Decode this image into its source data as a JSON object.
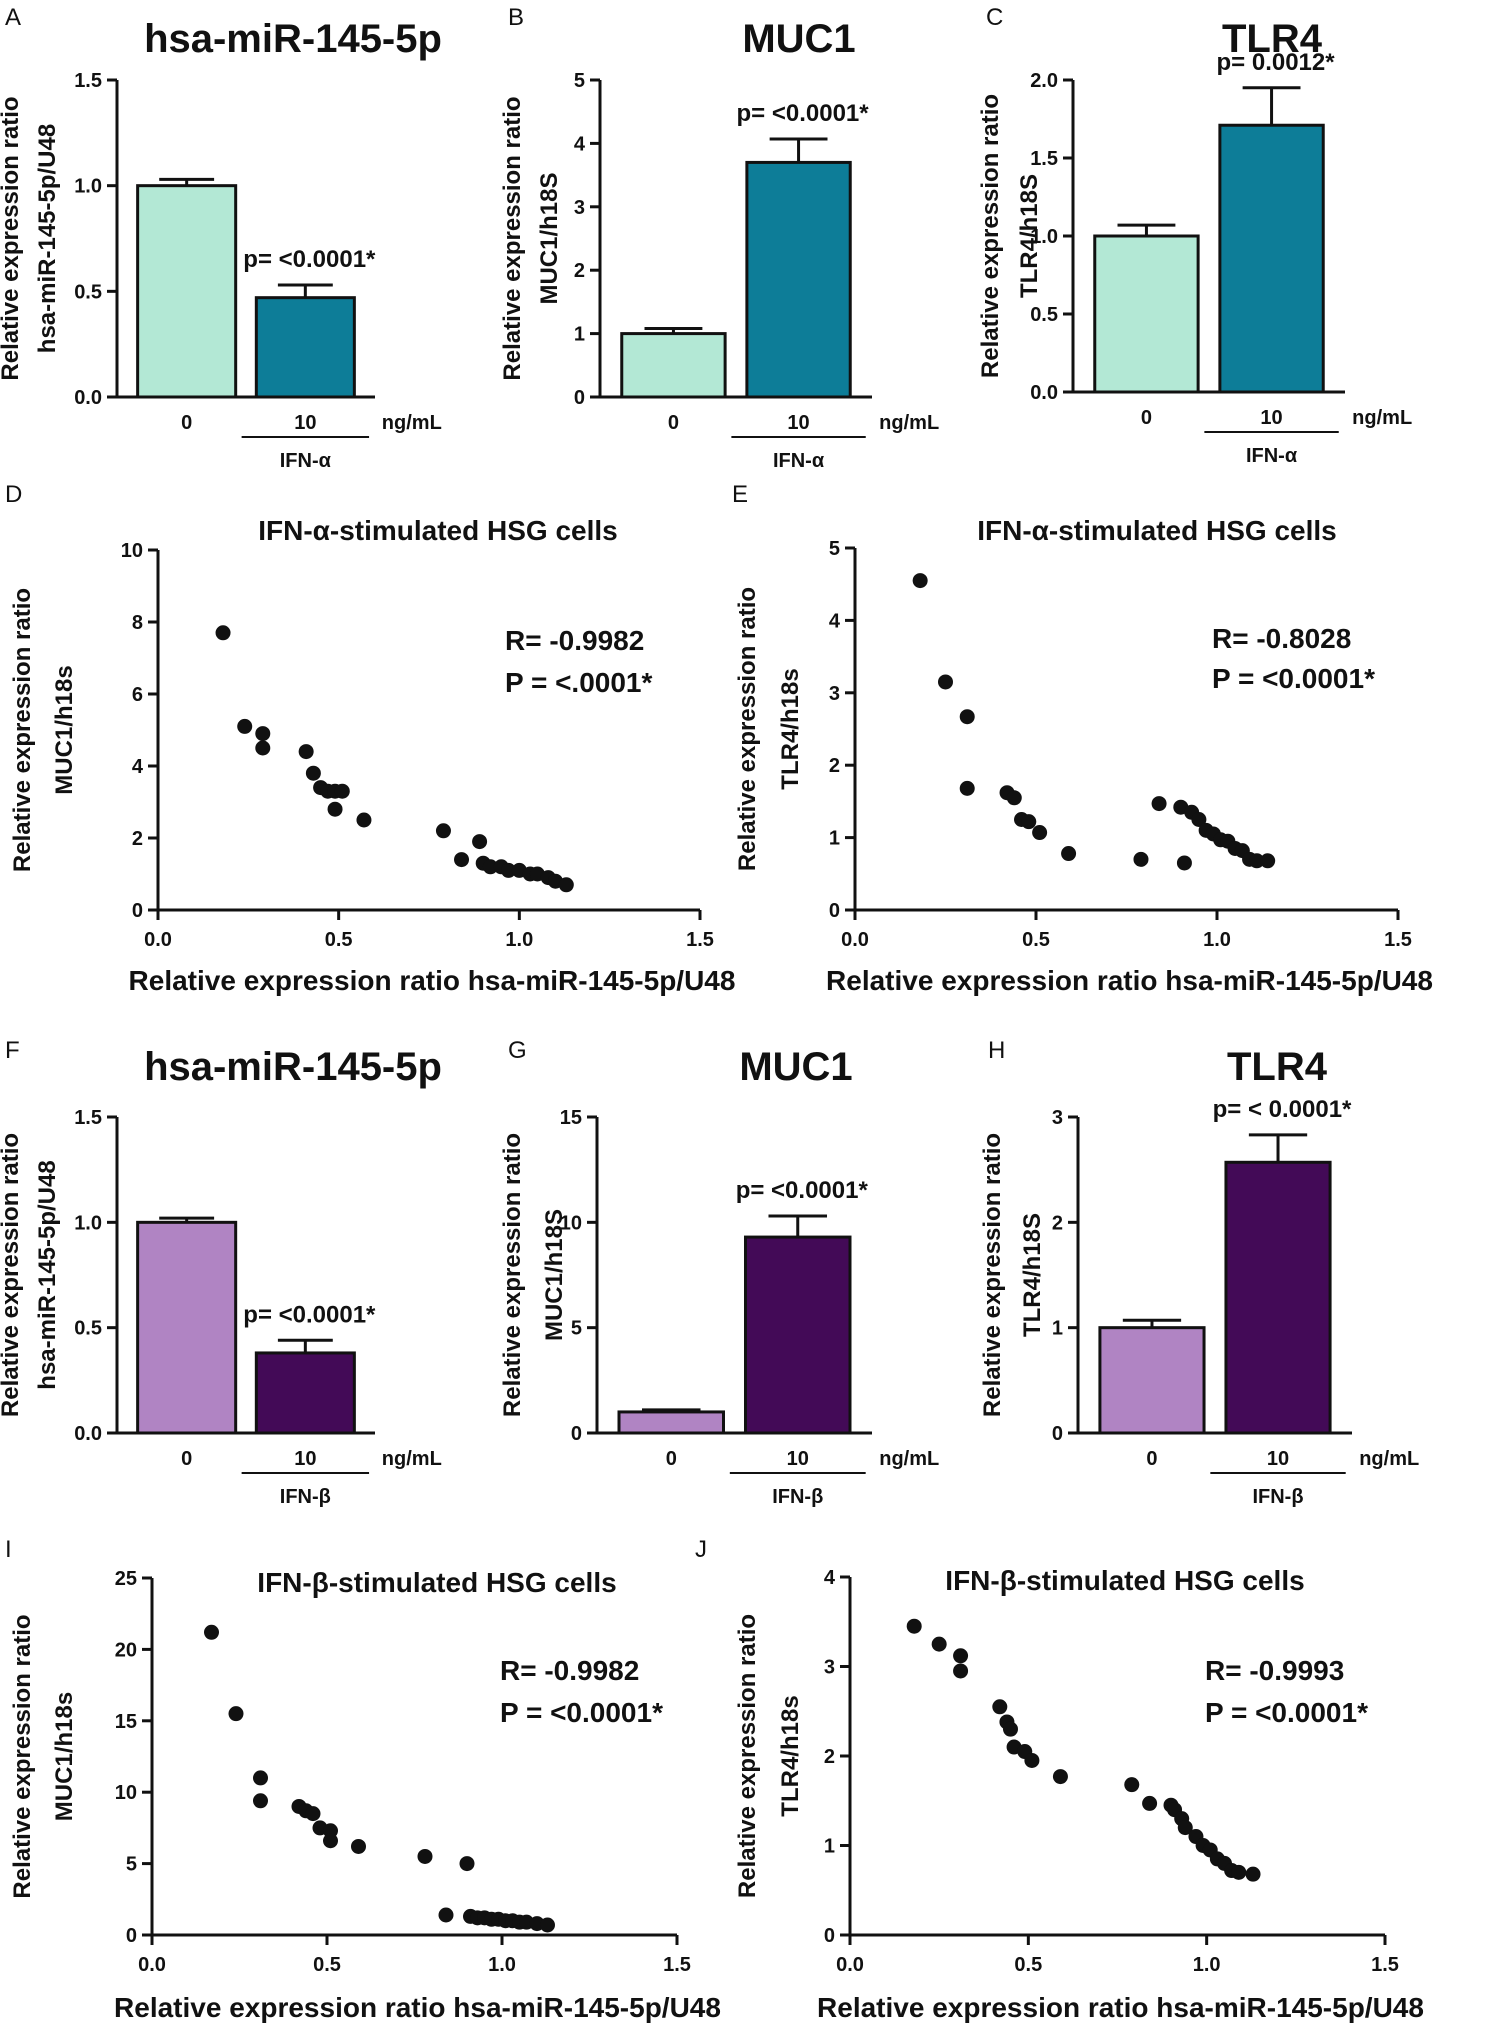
{
  "colors": {
    "alpha_control": "#b3e8d5",
    "alpha_treated": "#0d7d98",
    "beta_control": "#b084c3",
    "beta_treated": "#430a57",
    "ink": "#111111"
  },
  "chart_data": [
    {
      "id": "bar-A",
      "panel": "A",
      "type": "bar",
      "title": "hsa-miR-145-5p",
      "ylabel": [
        "Relative expression ratio",
        "hsa-miR-145-5p/U48"
      ],
      "ylim": [
        0,
        1.5
      ],
      "yticks": [
        "0.0",
        "0.5",
        "1.0",
        "1.5"
      ],
      "categories": [
        "0",
        "10"
      ],
      "unit": "ng/mL",
      "treatment": "IFN-α",
      "values": [
        1.0,
        0.47
      ],
      "errors": [
        0.03,
        0.06
      ],
      "annotation": "p= <0.0001*",
      "colors": [
        "#b3e8d5",
        "#0d7d98"
      ]
    },
    {
      "id": "bar-B",
      "panel": "B",
      "type": "bar",
      "title": "MUC1",
      "ylabel": [
        "Relative expression ratio",
        "MUC1/h18S"
      ],
      "ylim": [
        0,
        5
      ],
      "yticks": [
        "0",
        "1",
        "2",
        "3",
        "4",
        "5"
      ],
      "categories": [
        "0",
        "10"
      ],
      "unit": "ng/mL",
      "treatment": "IFN-α",
      "values": [
        1.0,
        3.7
      ],
      "errors": [
        0.08,
        0.37
      ],
      "annotation": "p= <0.0001*",
      "colors": [
        "#b3e8d5",
        "#0d7d98"
      ]
    },
    {
      "id": "bar-C",
      "panel": "C",
      "type": "bar",
      "title": "TLR4",
      "ylabel": [
        "Relative expression ratio",
        "TLR4/h18S"
      ],
      "ylim": [
        0,
        2.0
      ],
      "yticks": [
        "0.0",
        "0.5",
        "1.0",
        "1.5",
        "2.0"
      ],
      "categories": [
        "0",
        "10"
      ],
      "unit": "ng/mL",
      "treatment": "IFN-α",
      "values": [
        1.0,
        1.71
      ],
      "errors": [
        0.07,
        0.24
      ],
      "annotation": "p= 0.0012*",
      "colors": [
        "#b3e8d5",
        "#0d7d98"
      ]
    },
    {
      "id": "scatter-D",
      "panel": "D",
      "type": "scatter",
      "title": "IFN-α-stimulated HSG cells",
      "xlabel": "Relative expression ratio hsa-miR-145-5p/U48",
      "ylabel": [
        "Relative expression ratio",
        "MUC1/h18s"
      ],
      "xlim": [
        0,
        1.5
      ],
      "ylim": [
        0,
        10
      ],
      "xticks": [
        "0.0",
        "0.5",
        "1.0",
        "1.5"
      ],
      "yticks": [
        "0",
        "2",
        "4",
        "6",
        "8",
        "10"
      ],
      "stats": [
        "R= -0.9982",
        "P = <.0001*"
      ],
      "x": [
        0.18,
        0.24,
        0.29,
        0.29,
        0.41,
        0.43,
        0.45,
        0.47,
        0.49,
        0.51,
        0.49,
        0.57,
        0.79,
        0.84,
        0.89,
        0.9,
        0.92,
        0.95,
        0.97,
        1.0,
        1.03,
        1.05,
        1.08,
        1.1,
        1.13
      ],
      "y": [
        7.7,
        5.1,
        4.9,
        4.5,
        4.4,
        3.8,
        3.4,
        3.3,
        3.3,
        3.3,
        2.8,
        2.5,
        2.2,
        1.4,
        1.9,
        1.3,
        1.2,
        1.2,
        1.1,
        1.1,
        1.0,
        1.0,
        0.9,
        0.8,
        0.7
      ]
    },
    {
      "id": "scatter-E",
      "panel": "E",
      "type": "scatter",
      "title": "IFN-α-stimulated HSG cells",
      "xlabel": "Relative expression ratio hsa-miR-145-5p/U48",
      "ylabel": [
        "Relative expression ratio",
        "TLR4/h18s"
      ],
      "xlim": [
        0,
        1.5
      ],
      "ylim": [
        0,
        5
      ],
      "xticks": [
        "0.0",
        "0.5",
        "1.0",
        "1.5"
      ],
      "yticks": [
        "0",
        "1",
        "2",
        "3",
        "4",
        "5"
      ],
      "stats": [
        "R= -0.8028",
        "P = <0.0001*"
      ],
      "x": [
        0.18,
        0.25,
        0.31,
        0.31,
        0.42,
        0.44,
        0.46,
        0.48,
        0.51,
        0.59,
        0.79,
        0.84,
        0.9,
        0.91,
        0.93,
        0.95,
        0.97,
        0.99,
        1.01,
        1.03,
        1.05,
        1.07,
        1.09,
        1.11,
        1.14
      ],
      "y": [
        4.55,
        3.15,
        2.67,
        1.68,
        1.62,
        1.55,
        1.25,
        1.22,
        1.07,
        0.78,
        0.7,
        1.47,
        1.42,
        0.65,
        1.35,
        1.25,
        1.1,
        1.05,
        0.97,
        0.95,
        0.85,
        0.82,
        0.7,
        0.68,
        0.68
      ]
    },
    {
      "id": "bar-F",
      "panel": "F",
      "type": "bar",
      "title": "hsa-miR-145-5p",
      "ylabel": [
        "Relative expression ratio",
        "hsa-miR-145-5p/U48"
      ],
      "ylim": [
        0,
        1.5
      ],
      "yticks": [
        "0.0",
        "0.5",
        "1.0",
        "1.5"
      ],
      "categories": [
        "0",
        "10"
      ],
      "unit": "ng/mL",
      "treatment": "IFN-β",
      "values": [
        1.0,
        0.38
      ],
      "errors": [
        0.02,
        0.06
      ],
      "annotation": "p= <0.0001*",
      "colors": [
        "#b084c3",
        "#430a57"
      ]
    },
    {
      "id": "bar-G",
      "panel": "G",
      "type": "bar",
      "title": "MUC1",
      "ylabel": [
        "Relative expression ratio",
        "MUC1/h18S"
      ],
      "ylim": [
        0,
        15
      ],
      "yticks": [
        "0",
        "5",
        "10",
        "15"
      ],
      "categories": [
        "0",
        "10"
      ],
      "unit": "ng/mL",
      "treatment": "IFN-β",
      "values": [
        1.0,
        9.3
      ],
      "errors": [
        0.1,
        1.0
      ],
      "annotation": "p= <0.0001*",
      "colors": [
        "#b084c3",
        "#430a57"
      ]
    },
    {
      "id": "bar-H",
      "panel": "H",
      "type": "bar",
      "title": "TLR4",
      "ylabel": [
        "Relative expression ratio",
        "TLR4/h18S"
      ],
      "ylim": [
        0,
        3
      ],
      "yticks": [
        "0",
        "1",
        "2",
        "3"
      ],
      "categories": [
        "0",
        "10"
      ],
      "unit": "ng/mL",
      "treatment": "IFN-β",
      "values": [
        1.0,
        2.57
      ],
      "errors": [
        0.07,
        0.26
      ],
      "annotation": "p= < 0.0001*",
      "colors": [
        "#b084c3",
        "#430a57"
      ]
    },
    {
      "id": "scatter-I",
      "panel": "I",
      "type": "scatter",
      "title": "IFN-β-stimulated HSG cells",
      "xlabel": "Relative expression ratio hsa-miR-145-5p/U48",
      "ylabel": [
        "Relative expression ratio",
        "MUC1/h18s"
      ],
      "xlim": [
        0,
        1.5
      ],
      "ylim": [
        0,
        25
      ],
      "xticks": [
        "0.0",
        "0.5",
        "1.0",
        "1.5"
      ],
      "yticks": [
        "0",
        "5",
        "10",
        "15",
        "20",
        "25"
      ],
      "stats": [
        "R= -0.9982",
        "P = <0.0001*"
      ],
      "x": [
        0.17,
        0.24,
        0.31,
        0.31,
        0.42,
        0.44,
        0.46,
        0.48,
        0.51,
        0.51,
        0.59,
        0.78,
        0.84,
        0.9,
        0.91,
        0.93,
        0.95,
        0.97,
        0.99,
        1.01,
        1.03,
        1.05,
        1.07,
        1.1,
        1.13
      ],
      "y": [
        21.2,
        15.5,
        11.0,
        9.4,
        9.0,
        8.7,
        8.5,
        7.5,
        7.3,
        6.6,
        6.2,
        5.5,
        1.4,
        5.0,
        1.3,
        1.2,
        1.2,
        1.1,
        1.1,
        1.0,
        1.0,
        0.9,
        0.9,
        0.8,
        0.7
      ]
    },
    {
      "id": "scatter-J",
      "panel": "J",
      "type": "scatter",
      "title": "IFN-β-stimulated HSG cells",
      "xlabel": "Relative expression ratio hsa-miR-145-5p/U48",
      "ylabel": [
        "Relative expression ratio",
        "TLR4/h18s"
      ],
      "xlim": [
        0,
        1.5
      ],
      "ylim": [
        0,
        4
      ],
      "xticks": [
        "0.0",
        "0.5",
        "1.0",
        "1.5"
      ],
      "yticks": [
        "0",
        "1",
        "2",
        "3",
        "4"
      ],
      "stats": [
        "R= -0.9993",
        "P = <0.0001*"
      ],
      "x": [
        0.18,
        0.25,
        0.31,
        0.31,
        0.42,
        0.44,
        0.45,
        0.46,
        0.49,
        0.51,
        0.59,
        0.79,
        0.84,
        0.9,
        0.91,
        0.93,
        0.94,
        0.97,
        0.99,
        1.01,
        1.03,
        1.05,
        1.07,
        1.09,
        1.13
      ],
      "y": [
        3.45,
        3.25,
        3.12,
        2.95,
        2.55,
        2.38,
        2.3,
        2.1,
        2.05,
        1.95,
        1.77,
        1.68,
        1.47,
        1.45,
        1.4,
        1.3,
        1.2,
        1.1,
        1.0,
        0.95,
        0.85,
        0.8,
        0.72,
        0.7,
        0.68
      ]
    }
  ]
}
